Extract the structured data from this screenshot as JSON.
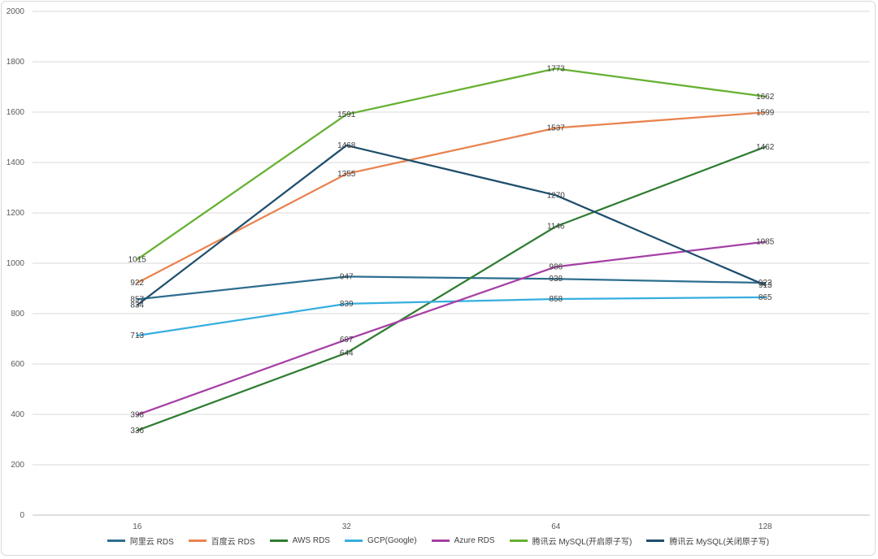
{
  "chart_data": {
    "type": "line",
    "title": "",
    "xlabel": "",
    "ylabel": "",
    "categories": [
      "16",
      "32",
      "64",
      "128"
    ],
    "ylim": [
      0,
      2000
    ],
    "yticks": [
      0,
      200,
      400,
      600,
      800,
      1000,
      1200,
      1400,
      1600,
      1800,
      2000
    ],
    "grid": true,
    "legend_position": "bottom",
    "series": [
      {
        "name": "阿里云 RDS",
        "color": "#2e6e8e",
        "values": [
          857,
          947,
          938,
          922
        ]
      },
      {
        "name": "百度云 RDS",
        "color": "#e8834f",
        "values": [
          922,
          1355,
          1537,
          1599
        ]
      },
      {
        "name": "AWS RDS",
        "color": "#2f7d32",
        "values": [
          336,
          644,
          1146,
          1462
        ]
      },
      {
        "name": "GCP(Google)",
        "color": "#36aee0",
        "values": [
          713,
          839,
          858,
          865
        ]
      },
      {
        "name": "Azure RDS",
        "color": "#a63fa6",
        "values": [
          398,
          697,
          986,
          1085
        ]
      },
      {
        "name": "腾讯云 MySQL(开启原子写)",
        "color": "#66b032",
        "values": [
          1015,
          1591,
          1773,
          1662
        ]
      },
      {
        "name": "腾讯云 MySQL(关闭原子写)",
        "color": "#1f4e6b",
        "values": [
          834,
          1468,
          1270,
          913
        ]
      }
    ]
  }
}
